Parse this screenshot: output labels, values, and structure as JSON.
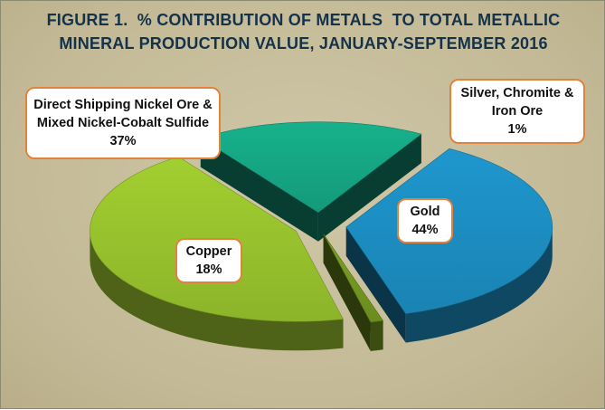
{
  "chart_data": {
    "type": "pie",
    "title_lines": [
      "FIGURE 1.  % CONTRIBUTION OF METALS  TO TOTAL METALLIC",
      "MINERAL PRODUCTION VALUE, JANUARY-SEPTEMBER 2016"
    ],
    "slices": [
      {
        "label_lines": [
          "Direct Shipping Nickel Ore &",
          "Mixed Nickel-Cobalt Sulfide"
        ],
        "value": 37,
        "value_label": "37%",
        "color": "#1a83b3"
      },
      {
        "label_lines": [
          "Silver, Chromite &",
          "Iron Ore"
        ],
        "value": 1,
        "value_label": "1%",
        "color": "#6b8c1f"
      },
      {
        "label_lines": [
          "Gold"
        ],
        "value": 44,
        "value_label": "44%",
        "color": "#8db42a"
      },
      {
        "label_lines": [
          "Copper"
        ],
        "value": 18,
        "value_label": "18%",
        "color": "#149a7a"
      }
    ],
    "exploded": true,
    "style": "3d",
    "callout_border_color": "#e3823a",
    "background_color": "#c9c0a0"
  }
}
